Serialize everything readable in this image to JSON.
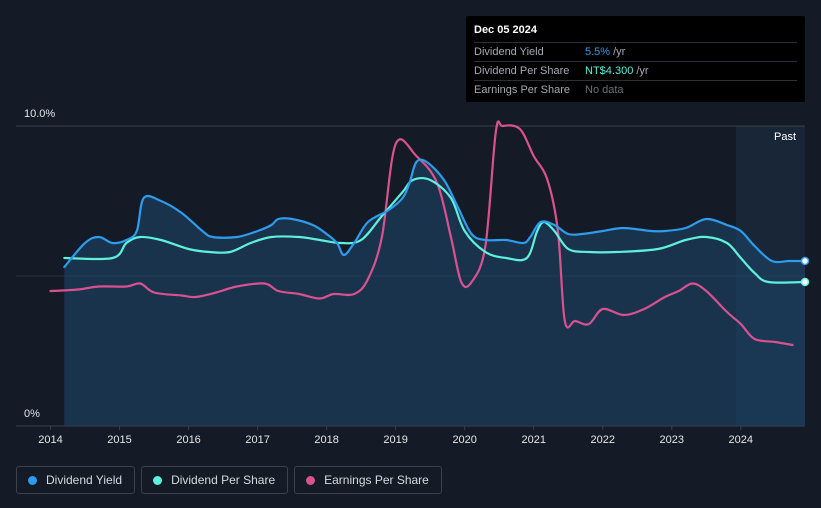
{
  "chart_data": {
    "type": "line",
    "title": "",
    "xlabel": "",
    "ylabel": "",
    "ylim": [
      0,
      10
    ],
    "y_tick_labels": [
      "10.0%",
      "0%"
    ],
    "x_tick_labels": [
      "2014",
      "2015",
      "2016",
      "2017",
      "2018",
      "2019",
      "2020",
      "2021",
      "2022",
      "2023",
      "2024"
    ],
    "xlim": [
      2013.5,
      2024.93
    ],
    "past_region_start": 2023.93,
    "past_label": "Past",
    "series": [
      {
        "name": "Dividend Yield",
        "color": "#2d9cec",
        "scale": "percent",
        "points": [
          [
            2014.2,
            5.3
          ],
          [
            2014.5,
            6.1
          ],
          [
            2014.7,
            6.3
          ],
          [
            2014.9,
            6.1
          ],
          [
            2015.1,
            6.2
          ],
          [
            2015.25,
            6.5
          ],
          [
            2015.35,
            7.6
          ],
          [
            2015.6,
            7.5
          ],
          [
            2015.9,
            7.1
          ],
          [
            2016.2,
            6.5
          ],
          [
            2016.35,
            6.3
          ],
          [
            2016.7,
            6.3
          ],
          [
            2017.0,
            6.5
          ],
          [
            2017.2,
            6.7
          ],
          [
            2017.3,
            6.9
          ],
          [
            2017.5,
            6.9
          ],
          [
            2017.8,
            6.7
          ],
          [
            2018.0,
            6.4
          ],
          [
            2018.15,
            6.1
          ],
          [
            2018.25,
            5.7
          ],
          [
            2018.4,
            6.1
          ],
          [
            2018.6,
            6.8
          ],
          [
            2018.9,
            7.2
          ],
          [
            2019.1,
            7.6
          ],
          [
            2019.2,
            8.1
          ],
          [
            2019.3,
            8.8
          ],
          [
            2019.45,
            8.8
          ],
          [
            2019.7,
            8.2
          ],
          [
            2019.9,
            7.3
          ],
          [
            2020.1,
            6.4
          ],
          [
            2020.3,
            6.2
          ],
          [
            2020.6,
            6.2
          ],
          [
            2020.85,
            6.1
          ],
          [
            2020.95,
            6.3
          ],
          [
            2021.1,
            6.8
          ],
          [
            2021.3,
            6.7
          ],
          [
            2021.5,
            6.4
          ],
          [
            2021.7,
            6.4
          ],
          [
            2022.0,
            6.5
          ],
          [
            2022.3,
            6.6
          ],
          [
            2022.7,
            6.5
          ],
          [
            2022.9,
            6.5
          ],
          [
            2023.2,
            6.6
          ],
          [
            2023.5,
            6.9
          ],
          [
            2023.8,
            6.7
          ],
          [
            2024.0,
            6.5
          ],
          [
            2024.2,
            6.0
          ],
          [
            2024.45,
            5.5
          ],
          [
            2024.7,
            5.5
          ],
          [
            2024.93,
            5.5
          ]
        ]
      },
      {
        "name": "Dividend Per Share",
        "color": "#5ef0dc",
        "scale": "percent",
        "points": [
          [
            2014.2,
            5.6
          ],
          [
            2014.9,
            5.6
          ],
          [
            2015.1,
            6.1
          ],
          [
            2015.3,
            6.3
          ],
          [
            2015.6,
            6.2
          ],
          [
            2016.0,
            5.9
          ],
          [
            2016.3,
            5.8
          ],
          [
            2016.6,
            5.8
          ],
          [
            2016.9,
            6.1
          ],
          [
            2017.2,
            6.3
          ],
          [
            2017.6,
            6.3
          ],
          [
            2017.9,
            6.2
          ],
          [
            2018.2,
            6.1
          ],
          [
            2018.5,
            6.2
          ],
          [
            2018.8,
            7.0
          ],
          [
            2019.1,
            7.8
          ],
          [
            2019.25,
            8.2
          ],
          [
            2019.5,
            8.2
          ],
          [
            2019.8,
            7.6
          ],
          [
            2020.0,
            6.5
          ],
          [
            2020.3,
            5.8
          ],
          [
            2020.6,
            5.6
          ],
          [
            2020.9,
            5.6
          ],
          [
            2021.05,
            6.5
          ],
          [
            2021.15,
            6.8
          ],
          [
            2021.3,
            6.5
          ],
          [
            2021.5,
            5.9
          ],
          [
            2021.8,
            5.8
          ],
          [
            2022.2,
            5.8
          ],
          [
            2022.8,
            5.9
          ],
          [
            2023.2,
            6.2
          ],
          [
            2023.5,
            6.3
          ],
          [
            2023.8,
            6.1
          ],
          [
            2024.0,
            5.6
          ],
          [
            2024.2,
            5.1
          ],
          [
            2024.4,
            4.8
          ],
          [
            2024.93,
            4.8
          ]
        ]
      },
      {
        "name": "Earnings Per Share",
        "color": "#d9528f",
        "scale": "relative",
        "points": [
          [
            2014.0,
            4.5
          ],
          [
            2014.4,
            4.55
          ],
          [
            2014.7,
            4.65
          ],
          [
            2015.1,
            4.65
          ],
          [
            2015.3,
            4.75
          ],
          [
            2015.5,
            4.45
          ],
          [
            2015.9,
            4.35
          ],
          [
            2016.1,
            4.3
          ],
          [
            2016.4,
            4.45
          ],
          [
            2016.7,
            4.65
          ],
          [
            2017.1,
            4.75
          ],
          [
            2017.3,
            4.5
          ],
          [
            2017.6,
            4.4
          ],
          [
            2017.9,
            4.25
          ],
          [
            2018.1,
            4.4
          ],
          [
            2018.4,
            4.4
          ],
          [
            2018.6,
            4.9
          ],
          [
            2018.8,
            6.3
          ],
          [
            2019.0,
            9.4
          ],
          [
            2019.3,
            9.0
          ],
          [
            2019.6,
            8.1
          ],
          [
            2019.8,
            6.3
          ],
          [
            2019.95,
            4.8
          ],
          [
            2020.1,
            4.8
          ],
          [
            2020.3,
            6.0
          ],
          [
            2020.45,
            9.8
          ],
          [
            2020.55,
            10.0
          ],
          [
            2020.8,
            9.9
          ],
          [
            2021.0,
            9.0
          ],
          [
            2021.2,
            8.2
          ],
          [
            2021.35,
            6.5
          ],
          [
            2021.45,
            3.5
          ],
          [
            2021.6,
            3.5
          ],
          [
            2021.8,
            3.4
          ],
          [
            2022.0,
            3.9
          ],
          [
            2022.3,
            3.7
          ],
          [
            2022.6,
            3.9
          ],
          [
            2022.9,
            4.3
          ],
          [
            2023.1,
            4.5
          ],
          [
            2023.3,
            4.75
          ],
          [
            2023.5,
            4.5
          ],
          [
            2023.8,
            3.8
          ],
          [
            2024.0,
            3.4
          ],
          [
            2024.2,
            2.9
          ],
          [
            2024.5,
            2.8
          ],
          [
            2024.75,
            2.7
          ]
        ]
      }
    ]
  },
  "tooltip": {
    "date": "Dec 05 2024",
    "rows": [
      {
        "label": "Dividend Yield",
        "value": "5.5%",
        "unit": "/yr",
        "color": "#2d9cec"
      },
      {
        "label": "Dividend Per Share",
        "value": "NT$4.300",
        "unit": "/yr",
        "color": "#5ef0dc"
      },
      {
        "label": "Earnings Per Share",
        "value": "No data"
      }
    ]
  },
  "legend": [
    {
      "label": "Dividend Yield",
      "color": "#2d9cec"
    },
    {
      "label": "Dividend Per Share",
      "color": "#5ef0dc"
    },
    {
      "label": "Earnings Per Share",
      "color": "#d9528f"
    }
  ]
}
